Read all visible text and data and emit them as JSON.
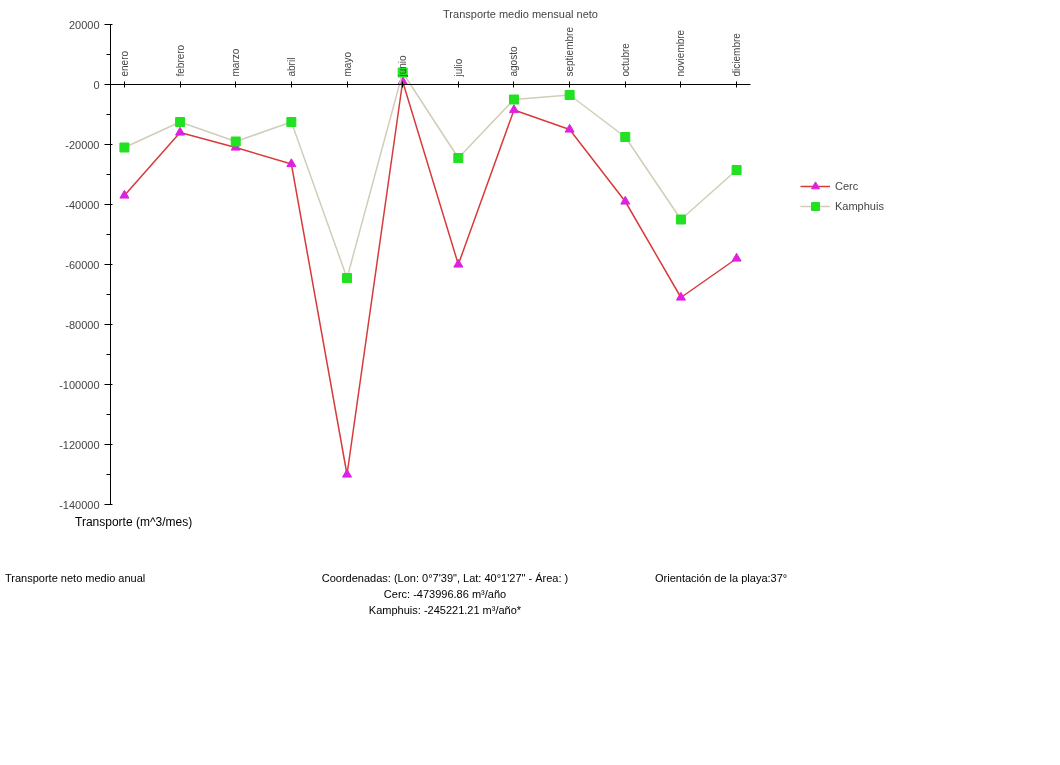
{
  "chart_data": {
    "type": "line",
    "title": "Transporte medio mensual neto",
    "ylabel": "Transporte (m^3/mes)",
    "categories": [
      "enero",
      "febrero",
      "marzo",
      "abril",
      "mayo",
      "junio",
      "julio",
      "agosto",
      "septiembre",
      "octubre",
      "noviembre",
      "diciembre"
    ],
    "series": [
      {
        "name": "Cerc",
        "color": "#d83a3a",
        "colors": [
          "#e020e0",
          "#e020e0",
          "#e020e0",
          "#e020e0",
          "#e020e0",
          "#e020e0",
          "#e020e0",
          "#e020e0",
          "#e020e0",
          "#e020e0",
          "#e020e0",
          "#e020e0"
        ],
        "marker": "triangle",
        "values": [
          -37000,
          -16000,
          -21000,
          -26500,
          -130000,
          1000,
          -60000,
          -8500,
          -15000,
          -39000,
          -71000,
          -58000
        ]
      },
      {
        "name": "Kamphuis",
        "color": "#d2cdb8",
        "colors": [
          "#22e022",
          "#22e022",
          "#22e022",
          "#22e022",
          "#22e022",
          "#22e022",
          "#22e022",
          "#22e022",
          "#22e022",
          "#22e022",
          "#22e022",
          "#22e022"
        ],
        "marker": "square",
        "values": [
          -21000,
          -12500,
          -19000,
          -12500,
          -64500,
          4000,
          -24500,
          -5000,
          -3500,
          -17500,
          -45000,
          -28500
        ]
      }
    ],
    "ylim": [
      -140000,
      20000
    ],
    "yticks": [
      -140000,
      -120000,
      -100000,
      -80000,
      -60000,
      -40000,
      -20000,
      0,
      20000
    ],
    "grid": false,
    "legend": "right",
    "annotations": [
      "Transporte neto medio anual",
      "Coordenadas: (Lon: 0°7'39\", Lat: 40°1'27\"  - Área: )",
      "Orientación de la playa:37°",
      "Cerc:  -473996.86 m³/año",
      "Kamphuis:  -245221.21 m³/año*"
    ]
  }
}
